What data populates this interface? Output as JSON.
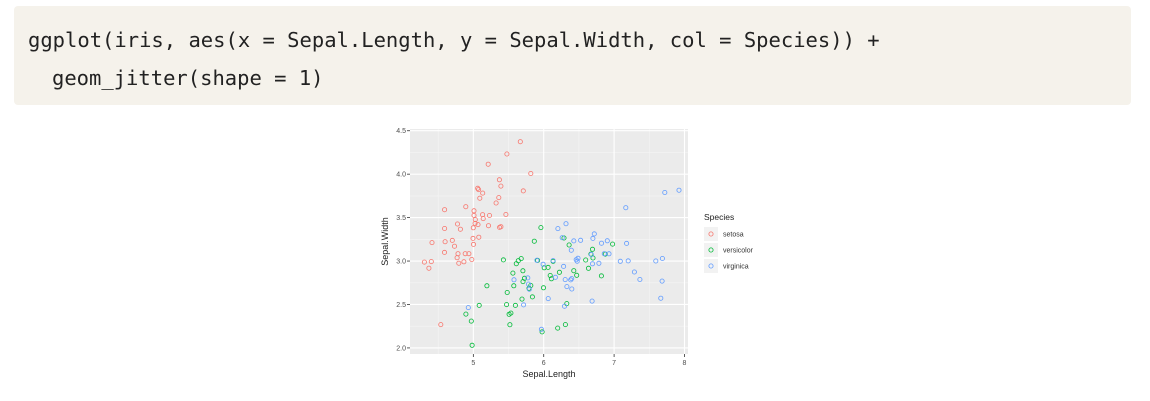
{
  "code": {
    "line1": "ggplot(iris, aes(x = Sepal.Length, y = Sepal.Width, col = Species)) +",
    "line2": "geom_jitter(shape = 1)"
  },
  "chart_data": {
    "type": "scatter",
    "xlabel": "Sepal.Length",
    "ylabel": "Sepal.Width",
    "xlim": [
      4.1,
      8.05
    ],
    "ylim": [
      1.93,
      4.52
    ],
    "xticks": [
      5,
      6,
      7,
      8
    ],
    "yticks": [
      2.0,
      2.5,
      3.0,
      3.5,
      4.0,
      4.5
    ],
    "grid": true,
    "panel_background": "#ebebeb",
    "legend": {
      "title": "Species",
      "position": "right"
    },
    "series": [
      {
        "name": "setosa",
        "color": "#F8766D",
        "points": [
          [
            5.1,
            3.5
          ],
          [
            4.9,
            3.0
          ],
          [
            4.7,
            3.2
          ],
          [
            4.6,
            3.1
          ],
          [
            5.0,
            3.6
          ],
          [
            5.4,
            3.9
          ],
          [
            4.6,
            3.4
          ],
          [
            5.0,
            3.4
          ],
          [
            4.4,
            2.9
          ],
          [
            4.9,
            3.1
          ],
          [
            5.4,
            3.7
          ],
          [
            4.8,
            3.4
          ],
          [
            4.8,
            3.0
          ],
          [
            4.3,
            3.0
          ],
          [
            5.8,
            4.0
          ],
          [
            5.7,
            4.4
          ],
          [
            5.4,
            3.9
          ],
          [
            5.1,
            3.5
          ],
          [
            5.7,
            3.8
          ],
          [
            5.1,
            3.8
          ],
          [
            5.4,
            3.4
          ],
          [
            5.1,
            3.7
          ],
          [
            4.6,
            3.6
          ],
          [
            5.1,
            3.3
          ],
          [
            4.8,
            3.4
          ],
          [
            5.0,
            3.0
          ],
          [
            5.0,
            3.4
          ],
          [
            5.2,
            3.5
          ],
          [
            5.2,
            3.4
          ],
          [
            4.7,
            3.2
          ],
          [
            4.8,
            3.1
          ],
          [
            5.4,
            3.4
          ],
          [
            5.2,
            4.1
          ],
          [
            5.5,
            4.2
          ],
          [
            4.9,
            3.1
          ],
          [
            5.0,
            3.2
          ],
          [
            5.5,
            3.5
          ],
          [
            4.9,
            3.6
          ],
          [
            4.4,
            3.0
          ],
          [
            5.1,
            3.4
          ],
          [
            5.0,
            3.5
          ],
          [
            4.5,
            2.3
          ],
          [
            4.4,
            3.2
          ],
          [
            5.0,
            3.5
          ],
          [
            5.1,
            3.8
          ],
          [
            4.8,
            3.0
          ],
          [
            5.1,
            3.8
          ],
          [
            4.6,
            3.2
          ],
          [
            5.3,
            3.7
          ],
          [
            5.0,
            3.3
          ]
        ]
      },
      {
        "name": "versicolor",
        "color": "#00BA38",
        "points": [
          [
            7.0,
            3.2
          ],
          [
            6.4,
            3.2
          ],
          [
            6.9,
            3.1
          ],
          [
            5.5,
            2.3
          ],
          [
            6.5,
            2.8
          ],
          [
            5.7,
            2.8
          ],
          [
            6.3,
            3.3
          ],
          [
            4.9,
            2.4
          ],
          [
            6.6,
            2.9
          ],
          [
            5.2,
            2.7
          ],
          [
            5.0,
            2.0
          ],
          [
            5.9,
            3.0
          ],
          [
            6.0,
            2.2
          ],
          [
            6.1,
            2.9
          ],
          [
            5.6,
            2.9
          ],
          [
            6.7,
            3.1
          ],
          [
            5.6,
            3.0
          ],
          [
            5.8,
            2.7
          ],
          [
            6.2,
            2.2
          ],
          [
            5.6,
            2.5
          ],
          [
            5.9,
            3.2
          ],
          [
            6.1,
            2.8
          ],
          [
            6.3,
            2.5
          ],
          [
            6.1,
            2.8
          ],
          [
            6.4,
            2.9
          ],
          [
            6.6,
            3.0
          ],
          [
            6.8,
            2.8
          ],
          [
            6.7,
            3.0
          ],
          [
            6.0,
            2.9
          ],
          [
            5.7,
            2.6
          ],
          [
            5.5,
            2.4
          ],
          [
            5.5,
            2.4
          ],
          [
            5.8,
            2.7
          ],
          [
            6.0,
            2.7
          ],
          [
            5.4,
            3.0
          ],
          [
            6.0,
            3.4
          ],
          [
            6.7,
            3.1
          ],
          [
            6.3,
            2.3
          ],
          [
            5.6,
            3.0
          ],
          [
            5.5,
            2.5
          ],
          [
            5.5,
            2.6
          ],
          [
            6.1,
            3.0
          ],
          [
            5.8,
            2.6
          ],
          [
            5.0,
            2.3
          ],
          [
            5.6,
            2.7
          ],
          [
            5.7,
            3.0
          ],
          [
            5.7,
            2.9
          ],
          [
            6.2,
            2.9
          ],
          [
            5.1,
            2.5
          ],
          [
            5.7,
            2.8
          ]
        ]
      },
      {
        "name": "virginica",
        "color": "#619CFF",
        "points": [
          [
            6.3,
            3.3
          ],
          [
            5.8,
            2.7
          ],
          [
            7.1,
            3.0
          ],
          [
            6.3,
            2.9
          ],
          [
            6.5,
            3.0
          ],
          [
            7.6,
            3.0
          ],
          [
            4.9,
            2.5
          ],
          [
            7.3,
            2.9
          ],
          [
            6.7,
            2.5
          ],
          [
            7.2,
            3.6
          ],
          [
            6.5,
            3.2
          ],
          [
            6.4,
            2.7
          ],
          [
            6.8,
            3.0
          ],
          [
            5.7,
            2.5
          ],
          [
            5.8,
            2.8
          ],
          [
            6.4,
            3.2
          ],
          [
            6.5,
            3.0
          ],
          [
            7.7,
            3.8
          ],
          [
            7.7,
            2.6
          ],
          [
            6.0,
            2.2
          ],
          [
            6.9,
            3.2
          ],
          [
            5.6,
            2.8
          ],
          [
            7.7,
            2.8
          ],
          [
            6.3,
            2.7
          ],
          [
            6.7,
            3.3
          ],
          [
            7.2,
            3.2
          ],
          [
            6.2,
            2.8
          ],
          [
            6.1,
            3.0
          ],
          [
            6.4,
            2.8
          ],
          [
            7.2,
            3.0
          ],
          [
            7.4,
            2.8
          ],
          [
            7.9,
            3.8
          ],
          [
            6.4,
            2.8
          ],
          [
            6.3,
            2.8
          ],
          [
            6.1,
            2.6
          ],
          [
            7.7,
            3.0
          ],
          [
            6.3,
            3.4
          ],
          [
            6.4,
            3.1
          ],
          [
            6.0,
            3.0
          ],
          [
            6.9,
            3.1
          ],
          [
            6.7,
            3.1
          ],
          [
            6.9,
            3.1
          ],
          [
            5.8,
            2.7
          ],
          [
            6.8,
            3.2
          ],
          [
            6.7,
            3.3
          ],
          [
            6.7,
            3.0
          ],
          [
            6.3,
            2.5
          ],
          [
            6.5,
            3.0
          ],
          [
            6.2,
            3.4
          ],
          [
            5.9,
            3.0
          ]
        ]
      }
    ]
  }
}
